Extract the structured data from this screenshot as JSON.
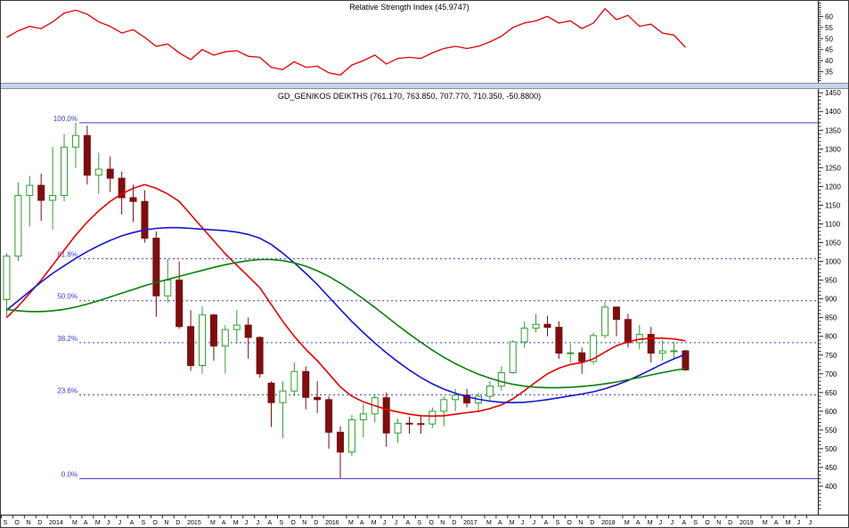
{
  "colors": {
    "axis_text": "#000000",
    "axis_line": "#222222",
    "splitter": "#c9d3e7"
  },
  "xaxis": {
    "total_slots": 71,
    "labels": [
      [
        0,
        "S"
      ],
      [
        1,
        "O"
      ],
      [
        2,
        "N"
      ],
      [
        3,
        "D"
      ],
      [
        4,
        "2014"
      ],
      [
        6,
        "M"
      ],
      [
        7,
        "A"
      ],
      [
        8,
        "M"
      ],
      [
        9,
        "J"
      ],
      [
        10,
        "J"
      ],
      [
        11,
        "A"
      ],
      [
        12,
        "S"
      ],
      [
        13,
        "O"
      ],
      [
        14,
        "N"
      ],
      [
        15,
        "D"
      ],
      [
        16,
        "2015"
      ],
      [
        18,
        "M"
      ],
      [
        19,
        "A"
      ],
      [
        20,
        "M"
      ],
      [
        21,
        "J"
      ],
      [
        22,
        "J"
      ],
      [
        23,
        "A"
      ],
      [
        24,
        "S"
      ],
      [
        25,
        "O"
      ],
      [
        26,
        "N"
      ],
      [
        27,
        "D"
      ],
      [
        28,
        "2016"
      ],
      [
        30,
        "M"
      ],
      [
        31,
        "A"
      ],
      [
        32,
        "M"
      ],
      [
        33,
        "J"
      ],
      [
        34,
        "J"
      ],
      [
        35,
        "A"
      ],
      [
        36,
        "S"
      ],
      [
        37,
        "O"
      ],
      [
        38,
        "N"
      ],
      [
        39,
        "D"
      ],
      [
        40,
        "2017"
      ],
      [
        42,
        "M"
      ],
      [
        43,
        "A"
      ],
      [
        44,
        "M"
      ],
      [
        45,
        "J"
      ],
      [
        46,
        "J"
      ],
      [
        47,
        "A"
      ],
      [
        48,
        "S"
      ],
      [
        49,
        "O"
      ],
      [
        50,
        "N"
      ],
      [
        51,
        "D"
      ],
      [
        52,
        "2018"
      ],
      [
        54,
        "M"
      ],
      [
        55,
        "A"
      ],
      [
        56,
        "M"
      ],
      [
        57,
        "J"
      ],
      [
        58,
        "J"
      ],
      [
        59,
        "A"
      ],
      [
        60,
        "S"
      ],
      [
        61,
        "O"
      ],
      [
        62,
        "N"
      ],
      [
        63,
        "D"
      ],
      [
        64,
        "2019"
      ],
      [
        66,
        "M"
      ],
      [
        67,
        "A"
      ],
      [
        68,
        "M"
      ],
      [
        69,
        "J"
      ],
      [
        70,
        "J"
      ]
    ]
  },
  "chart_data": [
    {
      "panel": "indicator",
      "type": "line",
      "title": "Relative Strength Index (45.9747)",
      "current_value": 45.9747,
      "ylim": [
        30,
        67
      ],
      "yticks": [
        35,
        40,
        45,
        50,
        55,
        60
      ],
      "grid": false,
      "legend_position": "none",
      "series": [
        {
          "name": "RSI",
          "color": "#e40000",
          "values": [
            50.5,
            53.5,
            55.5,
            54.5,
            57.5,
            61.5,
            62.8,
            61.0,
            57.5,
            55.5,
            52.5,
            54.0,
            50.5,
            46.5,
            47.5,
            43.5,
            40.5,
            45.0,
            42.5,
            44.0,
            44.5,
            42.0,
            41.5,
            37.0,
            36.0,
            39.5,
            37.0,
            37.5,
            34.5,
            33.5,
            38.0,
            40.0,
            42.5,
            38.5,
            41.0,
            41.5,
            41.0,
            43.5,
            45.5,
            46.5,
            45.5,
            46.5,
            48.5,
            51.0,
            55.0,
            57.0,
            58.0,
            60.0,
            57.0,
            58.0,
            54.5,
            57.0,
            63.5,
            58.5,
            60.5,
            55.5,
            56.5,
            52.5,
            51.5,
            45.97
          ]
        }
      ]
    },
    {
      "panel": "price",
      "type": "candlestick",
      "title": "GD_GENIKOS DEIKTHS (761.170, 763.850, 707.770, 710.350, -50.8800)",
      "last_bar": {
        "open": 761.17,
        "high": 763.85,
        "low": 707.77,
        "close": 710.35,
        "change": -50.88
      },
      "ylim": [
        324,
        1460
      ],
      "yticks": [
        400,
        450,
        500,
        550,
        600,
        650,
        700,
        750,
        800,
        850,
        900,
        950,
        1000,
        1050,
        1100,
        1150,
        1200,
        1250,
        1300,
        1350,
        1400,
        1450
      ],
      "candle_up_color": "#2f9e2f",
      "candle_down_color": "#7d0f0f",
      "fib_color": "#3c3ccd",
      "fib_levels": [
        {
          "label": "100.0%",
          "value": 1370
        },
        {
          "label": "61.8%",
          "value": 1007
        },
        {
          "label": "50.0%",
          "value": 895
        },
        {
          "label": "38.2%",
          "value": 783
        },
        {
          "label": "23.6%",
          "value": 644
        },
        {
          "label": "0.0%",
          "value": 420
        }
      ],
      "candles_ohlc": [
        [
          898,
          1022,
          853,
          1014
        ],
        [
          1014,
          1211,
          1001,
          1176
        ],
        [
          1176,
          1228,
          1093,
          1203
        ],
        [
          1203,
          1234,
          1108,
          1163
        ],
        [
          1163,
          1305,
          1085,
          1176
        ],
        [
          1176,
          1340,
          1160,
          1305
        ],
        [
          1305,
          1370,
          1250,
          1336
        ],
        [
          1336,
          1362,
          1205,
          1230
        ],
        [
          1230,
          1290,
          1180,
          1246
        ],
        [
          1246,
          1280,
          1185,
          1222
        ],
        [
          1222,
          1240,
          1125,
          1170
        ],
        [
          1170,
          1205,
          1105,
          1160
        ],
        [
          1160,
          1190,
          1050,
          1062
        ],
        [
          1062,
          1080,
          852,
          908
        ],
        [
          908,
          1007,
          890,
          950
        ],
        [
          950,
          1000,
          820,
          826
        ],
        [
          826,
          870,
          708,
          722
        ],
        [
          722,
          880,
          700,
          857
        ],
        [
          857,
          860,
          735,
          774
        ],
        [
          774,
          830,
          700,
          818
        ],
        [
          818,
          870,
          780,
          830
        ],
        [
          830,
          850,
          740,
          797
        ],
        [
          797,
          800,
          690,
          700
        ],
        [
          675,
          680,
          558,
          623
        ],
        [
          623,
          680,
          528,
          654
        ],
        [
          654,
          730,
          640,
          706
        ],
        [
          706,
          720,
          605,
          637
        ],
        [
          637,
          680,
          595,
          631
        ],
        [
          631,
          640,
          500,
          544
        ],
        [
          544,
          560,
          421,
          491
        ],
        [
          491,
          590,
          480,
          577
        ],
        [
          577,
          620,
          530,
          593
        ],
        [
          593,
          645,
          570,
          636
        ],
        [
          636,
          650,
          505,
          542
        ],
        [
          542,
          580,
          515,
          568
        ],
        [
          568,
          585,
          540,
          567
        ],
        [
          567,
          590,
          540,
          566
        ],
        [
          566,
          610,
          555,
          600
        ],
        [
          600,
          640,
          560,
          631
        ],
        [
          631,
          660,
          600,
          643
        ],
        [
          643,
          660,
          610,
          622
        ],
        [
          622,
          650,
          600,
          640
        ],
        [
          640,
          680,
          625,
          667
        ],
        [
          667,
          720,
          655,
          703
        ],
        [
          703,
          790,
          700,
          785
        ],
        [
          785,
          840,
          770,
          822
        ],
        [
          822,
          860,
          810,
          832
        ],
        [
          832,
          855,
          800,
          824
        ],
        [
          824,
          840,
          740,
          755
        ],
        [
          755,
          780,
          730,
          756
        ],
        [
          756,
          770,
          700,
          733
        ],
        [
          733,
          810,
          725,
          802
        ],
        [
          802,
          892,
          795,
          878
        ],
        [
          878,
          880,
          800,
          845
        ],
        [
          845,
          860,
          770,
          783
        ],
        [
          783,
          830,
          765,
          805
        ],
        [
          805,
          825,
          730,
          755
        ],
        [
          755,
          790,
          735,
          761
        ],
        [
          761,
          785,
          740,
          761.23
        ],
        [
          761.17,
          763.85,
          707.77,
          710.35
        ]
      ],
      "overlays": [
        {
          "name": "ma-fast-red",
          "color": "#e40000",
          "values": [
            850,
            880,
            915,
            950,
            990,
            1030,
            1070,
            1105,
            1135,
            1160,
            1180,
            1195,
            1205,
            1195,
            1180,
            1160,
            1125,
            1090,
            1055,
            1020,
            990,
            960,
            930,
            885,
            840,
            800,
            765,
            735,
            700,
            665,
            640,
            625,
            615,
            605,
            598,
            592,
            588,
            587,
            588,
            592,
            596,
            600,
            607,
            617,
            633,
            655,
            678,
            700,
            715,
            725,
            730,
            740,
            758,
            775,
            785,
            792,
            795,
            795,
            793,
            788
          ]
        },
        {
          "name": "ma-medium-blue",
          "color": "#1414d2",
          "values": [
            870,
            895,
            920,
            945,
            968,
            988,
            1008,
            1026,
            1042,
            1056,
            1068,
            1077,
            1084,
            1088,
            1090,
            1090,
            1088,
            1086,
            1084,
            1082,
            1078,
            1072,
            1062,
            1045,
            1022,
            996,
            968,
            938,
            905,
            872,
            840,
            810,
            782,
            756,
            732,
            710,
            690,
            673,
            659,
            648,
            639,
            632,
            627,
            624,
            623,
            624,
            627,
            631,
            636,
            641,
            646,
            652,
            660,
            670,
            682,
            696,
            711,
            726,
            740,
            752
          ]
        },
        {
          "name": "ma-slow-green",
          "color": "#0a7d0a",
          "values": [
            872,
            868,
            866,
            866,
            868,
            872,
            878,
            886,
            895,
            905,
            915,
            925,
            935,
            944,
            952,
            960,
            968,
            976,
            984,
            991,
            997,
            1002,
            1005,
            1005,
            1002,
            996,
            987,
            975,
            960,
            942,
            922,
            900,
            877,
            853,
            829,
            806,
            784,
            763,
            744,
            727,
            712,
            699,
            688,
            679,
            672,
            667,
            664,
            663,
            663,
            664,
            666,
            669,
            673,
            678,
            684,
            690,
            697,
            703,
            709,
            714
          ]
        }
      ]
    }
  ]
}
